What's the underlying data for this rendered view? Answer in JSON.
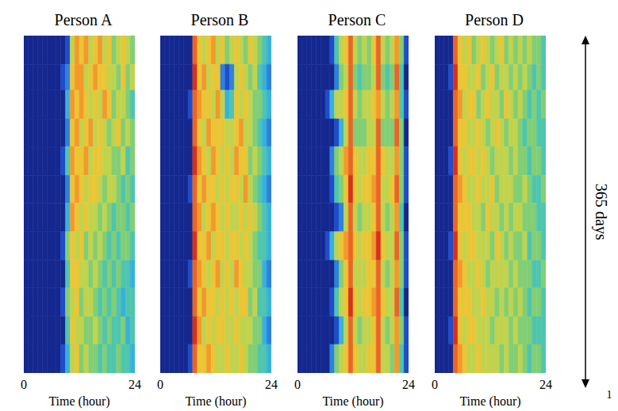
{
  "chart_data": [
    {
      "type": "heatmap",
      "title": "Person A",
      "x_label": "Time (hour)",
      "xlim": [
        0,
        24
      ],
      "xticks": [
        0,
        24
      ],
      "ylim": [
        0,
        365
      ],
      "tick_labels": "x",
      "x_bins": [
        0,
        1,
        2,
        3,
        4,
        5,
        6,
        7,
        8,
        9,
        10,
        11,
        12,
        13,
        14,
        15,
        16,
        17,
        18,
        19,
        20,
        21,
        22,
        23,
        24
      ],
      "y_bins": [
        0,
        31,
        59,
        90,
        120,
        151,
        181,
        212,
        243,
        273,
        304,
        334,
        365
      ],
      "color_range": [
        0,
        10
      ],
      "values": [
        [
          0,
          0,
          0,
          0,
          0,
          0,
          0,
          0,
          0,
          1,
          6,
          8,
          7,
          8,
          6,
          7,
          8,
          6,
          7,
          5,
          6,
          7,
          6,
          5
        ],
        [
          0,
          0,
          0,
          0,
          0,
          0,
          0,
          0,
          1,
          2,
          7,
          8,
          8,
          6,
          7,
          8,
          7,
          7,
          6,
          6,
          5,
          7,
          5,
          6
        ],
        [
          0,
          0,
          0,
          0,
          0,
          0,
          0,
          0,
          0,
          3,
          8,
          7,
          8,
          7,
          6,
          7,
          6,
          8,
          7,
          5,
          6,
          6,
          5,
          4
        ],
        [
          0,
          0,
          0,
          0,
          0,
          0,
          0,
          0,
          0,
          2,
          7,
          8,
          6,
          7,
          8,
          6,
          7,
          6,
          5,
          6,
          7,
          5,
          6,
          5
        ],
        [
          0,
          0,
          0,
          0,
          0,
          0,
          0,
          0,
          1,
          4,
          8,
          7,
          7,
          8,
          6,
          7,
          7,
          6,
          6,
          5,
          5,
          6,
          4,
          5
        ],
        [
          0,
          0,
          0,
          0,
          0,
          0,
          0,
          0,
          0,
          2,
          7,
          8,
          7,
          6,
          7,
          7,
          6,
          5,
          6,
          6,
          5,
          4,
          5,
          4
        ],
        [
          0,
          0,
          0,
          0,
          0,
          0,
          0,
          0,
          0,
          3,
          8,
          7,
          6,
          7,
          6,
          6,
          5,
          6,
          5,
          4,
          5,
          5,
          4,
          5
        ],
        [
          0,
          0,
          0,
          0,
          0,
          0,
          0,
          0,
          1,
          5,
          7,
          6,
          7,
          5,
          6,
          5,
          6,
          5,
          4,
          5,
          4,
          5,
          5,
          4
        ],
        [
          0,
          0,
          0,
          0,
          0,
          0,
          0,
          0,
          0,
          4,
          7,
          7,
          6,
          6,
          5,
          6,
          5,
          4,
          5,
          4,
          5,
          4,
          4,
          3
        ],
        [
          0,
          0,
          0,
          0,
          0,
          0,
          0,
          0,
          1,
          5,
          6,
          7,
          5,
          6,
          6,
          5,
          4,
          5,
          4,
          5,
          4,
          3,
          4,
          4
        ],
        [
          0,
          0,
          0,
          0,
          0,
          0,
          0,
          0,
          0,
          4,
          7,
          6,
          6,
          5,
          5,
          6,
          5,
          4,
          5,
          4,
          4,
          5,
          3,
          4
        ],
        [
          0,
          0,
          0,
          0,
          0,
          0,
          0,
          0,
          1,
          3,
          6,
          7,
          5,
          6,
          5,
          5,
          4,
          5,
          4,
          4,
          5,
          4,
          4,
          3
        ]
      ]
    },
    {
      "type": "heatmap",
      "title": "Person B",
      "x_label": "Time (hour)",
      "xlim": [
        0,
        24
      ],
      "xticks": [
        0,
        24
      ],
      "ylim": [
        0,
        365
      ],
      "tick_labels": "x",
      "x_bins": [
        0,
        1,
        2,
        3,
        4,
        5,
        6,
        7,
        8,
        9,
        10,
        11,
        12,
        13,
        14,
        15,
        16,
        17,
        18,
        19,
        20,
        21,
        22,
        23,
        24
      ],
      "y_bins": [
        0,
        31,
        59,
        90,
        120,
        151,
        181,
        212,
        243,
        273,
        304,
        334,
        365
      ],
      "color_range": [
        0,
        10
      ],
      "values": [
        [
          0,
          0,
          0,
          0,
          0,
          0,
          0,
          9,
          7,
          6,
          7,
          8,
          6,
          7,
          5,
          6,
          7,
          6,
          5,
          7,
          6,
          5,
          4,
          3
        ],
        [
          0,
          0,
          0,
          0,
          0,
          0,
          0,
          10,
          7,
          8,
          6,
          7,
          7,
          2,
          1,
          2,
          6,
          7,
          6,
          5,
          6,
          4,
          3,
          2
        ],
        [
          0,
          0,
          0,
          0,
          0,
          0,
          1,
          9,
          8,
          7,
          7,
          6,
          8,
          6,
          3,
          4,
          7,
          6,
          7,
          6,
          5,
          5,
          4,
          3
        ],
        [
          0,
          0,
          0,
          0,
          0,
          0,
          0,
          9,
          7,
          6,
          8,
          7,
          7,
          7,
          6,
          6,
          7,
          8,
          6,
          6,
          5,
          4,
          3,
          2
        ],
        [
          0,
          0,
          0,
          0,
          0,
          0,
          0,
          10,
          8,
          7,
          6,
          8,
          7,
          6,
          7,
          6,
          8,
          7,
          7,
          5,
          6,
          5,
          4,
          3
        ],
        [
          0,
          0,
          0,
          0,
          0,
          0,
          1,
          9,
          7,
          8,
          7,
          7,
          6,
          7,
          6,
          7,
          7,
          6,
          8,
          6,
          5,
          4,
          3,
          2
        ],
        [
          0,
          0,
          0,
          0,
          0,
          0,
          0,
          9,
          8,
          6,
          7,
          8,
          7,
          6,
          7,
          6,
          6,
          7,
          6,
          7,
          6,
          5,
          4,
          3
        ],
        [
          0,
          0,
          0,
          0,
          0,
          0,
          0,
          10,
          7,
          7,
          8,
          6,
          7,
          7,
          6,
          7,
          7,
          6,
          7,
          6,
          5,
          4,
          4,
          3
        ],
        [
          0,
          0,
          0,
          0,
          0,
          0,
          1,
          9,
          8,
          7,
          6,
          7,
          8,
          6,
          7,
          6,
          8,
          7,
          6,
          6,
          5,
          5,
          3,
          2
        ],
        [
          0,
          0,
          0,
          0,
          0,
          0,
          0,
          9,
          7,
          8,
          7,
          7,
          6,
          7,
          6,
          7,
          6,
          7,
          7,
          5,
          6,
          4,
          4,
          3
        ],
        [
          0,
          0,
          0,
          0,
          0,
          0,
          0,
          10,
          8,
          6,
          7,
          6,
          7,
          7,
          6,
          6,
          7,
          6,
          6,
          6,
          5,
          5,
          3,
          2
        ],
        [
          0,
          0,
          0,
          0,
          0,
          0,
          1,
          9,
          7,
          7,
          8,
          7,
          6,
          6,
          7,
          6,
          6,
          7,
          6,
          5,
          5,
          4,
          4,
          3
        ]
      ]
    },
    {
      "type": "heatmap",
      "title": "Person C",
      "x_label": "Time (hour)",
      "xlim": [
        0,
        24
      ],
      "xticks": [
        0,
        24
      ],
      "ylim": [
        0,
        365
      ],
      "tick_labels": "x",
      "x_bins": [
        0,
        1,
        2,
        3,
        4,
        5,
        6,
        7,
        8,
        9,
        10,
        11,
        12,
        13,
        14,
        15,
        16,
        17,
        18,
        19,
        20,
        21,
        22,
        23,
        24
      ],
      "y_bins": [
        0,
        31,
        59,
        90,
        120,
        151,
        181,
        212,
        243,
        273,
        304,
        334,
        365
      ],
      "color_range": [
        0,
        10
      ],
      "values": [
        [
          0,
          0,
          0,
          0,
          0,
          0,
          0,
          1,
          4,
          6,
          7,
          9,
          6,
          5,
          6,
          5,
          7,
          9,
          6,
          5,
          6,
          8,
          5,
          1
        ],
        [
          0,
          0,
          0,
          0,
          0,
          0,
          0,
          0,
          2,
          5,
          6,
          9,
          5,
          4,
          5,
          5,
          6,
          9,
          5,
          4,
          5,
          9,
          4,
          0
        ],
        [
          0,
          0,
          0,
          0,
          0,
          0,
          1,
          3,
          6,
          6,
          7,
          9,
          6,
          5,
          6,
          6,
          7,
          8,
          6,
          5,
          6,
          8,
          4,
          1
        ],
        [
          0,
          0,
          0,
          0,
          0,
          0,
          0,
          0,
          1,
          3,
          6,
          9,
          5,
          5,
          5,
          6,
          6,
          9,
          5,
          5,
          5,
          9,
          5,
          0
        ],
        [
          0,
          0,
          0,
          0,
          0,
          0,
          0,
          2,
          5,
          6,
          8,
          9,
          7,
          6,
          6,
          7,
          7,
          9,
          7,
          6,
          6,
          8,
          5,
          1
        ],
        [
          0,
          0,
          0,
          0,
          0,
          0,
          0,
          1,
          4,
          5,
          7,
          10,
          7,
          6,
          7,
          7,
          8,
          9,
          6,
          6,
          7,
          9,
          5,
          1
        ],
        [
          0,
          0,
          0,
          0,
          0,
          0,
          0,
          0,
          1,
          2,
          6,
          9,
          6,
          5,
          6,
          6,
          7,
          9,
          6,
          5,
          6,
          8,
          4,
          0
        ],
        [
          0,
          0,
          0,
          0,
          0,
          0,
          1,
          3,
          6,
          7,
          8,
          9,
          7,
          6,
          7,
          7,
          8,
          10,
          7,
          6,
          6,
          9,
          5,
          1
        ],
        [
          0,
          0,
          0,
          0,
          0,
          0,
          0,
          0,
          2,
          5,
          7,
          9,
          6,
          6,
          6,
          7,
          7,
          9,
          6,
          5,
          6,
          8,
          5,
          1
        ],
        [
          0,
          0,
          0,
          0,
          0,
          0,
          0,
          1,
          4,
          6,
          7,
          10,
          7,
          6,
          7,
          7,
          8,
          9,
          7,
          6,
          6,
          9,
          4,
          0
        ],
        [
          0,
          0,
          0,
          0,
          0,
          0,
          0,
          0,
          1,
          3,
          6,
          9,
          6,
          5,
          6,
          6,
          7,
          9,
          6,
          5,
          6,
          8,
          5,
          1
        ],
        [
          0,
          0,
          0,
          0,
          0,
          0,
          0,
          2,
          5,
          6,
          7,
          9,
          7,
          6,
          6,
          7,
          7,
          9,
          6,
          6,
          5,
          8,
          4,
          1
        ]
      ]
    },
    {
      "type": "heatmap",
      "title": "Person D",
      "x_label": "Time (hour)",
      "xlim": [
        0,
        24
      ],
      "xticks": [
        0,
        24
      ],
      "ylim": [
        0,
        365
      ],
      "tick_labels": "x",
      "x_bins": [
        0,
        1,
        2,
        3,
        4,
        5,
        6,
        7,
        8,
        9,
        10,
        11,
        12,
        13,
        14,
        15,
        16,
        17,
        18,
        19,
        20,
        21,
        22,
        23,
        24
      ],
      "y_bins": [
        0,
        31,
        59,
        90,
        120,
        151,
        181,
        212,
        243,
        273,
        304,
        334,
        365
      ],
      "color_range": [
        0,
        10
      ],
      "values": [
        [
          0,
          0,
          0,
          0,
          9,
          7,
          6,
          7,
          5,
          6,
          7,
          6,
          5,
          6,
          7,
          5,
          6,
          5,
          6,
          5,
          6,
          5,
          5,
          4
        ],
        [
          0,
          0,
          0,
          1,
          10,
          7,
          7,
          6,
          6,
          7,
          5,
          6,
          7,
          5,
          6,
          6,
          5,
          6,
          5,
          6,
          5,
          4,
          5,
          4
        ],
        [
          0,
          0,
          0,
          0,
          9,
          8,
          6,
          7,
          7,
          5,
          6,
          7,
          6,
          6,
          5,
          7,
          6,
          5,
          6,
          5,
          4,
          5,
          4,
          5
        ],
        [
          0,
          0,
          0,
          0,
          9,
          7,
          7,
          6,
          6,
          7,
          6,
          5,
          6,
          7,
          6,
          5,
          6,
          6,
          5,
          4,
          5,
          5,
          4,
          4
        ],
        [
          0,
          0,
          0,
          1,
          10,
          7,
          6,
          7,
          7,
          6,
          7,
          6,
          5,
          6,
          6,
          6,
          5,
          6,
          5,
          5,
          4,
          5,
          5,
          4
        ],
        [
          0,
          0,
          0,
          0,
          9,
          8,
          7,
          6,
          6,
          7,
          6,
          6,
          7,
          5,
          6,
          6,
          6,
          5,
          5,
          6,
          5,
          4,
          4,
          5
        ],
        [
          0,
          0,
          0,
          0,
          9,
          7,
          7,
          7,
          6,
          6,
          5,
          7,
          6,
          6,
          5,
          6,
          5,
          6,
          6,
          5,
          5,
          5,
          4,
          4
        ],
        [
          0,
          0,
          0,
          1,
          10,
          7,
          6,
          7,
          7,
          6,
          6,
          6,
          5,
          7,
          6,
          5,
          6,
          5,
          5,
          6,
          4,
          5,
          5,
          4
        ],
        [
          0,
          0,
          0,
          0,
          9,
          8,
          7,
          6,
          6,
          7,
          6,
          5,
          6,
          6,
          6,
          6,
          5,
          6,
          5,
          5,
          5,
          4,
          4,
          5
        ],
        [
          0,
          0,
          0,
          0,
          9,
          7,
          7,
          7,
          6,
          6,
          7,
          6,
          6,
          5,
          6,
          5,
          6,
          5,
          6,
          5,
          4,
          5,
          5,
          4
        ],
        [
          0,
          0,
          0,
          1,
          10,
          7,
          6,
          7,
          7,
          6,
          6,
          6,
          5,
          6,
          6,
          6,
          5,
          6,
          5,
          5,
          5,
          4,
          4,
          4
        ],
        [
          0,
          0,
          0,
          0,
          9,
          8,
          7,
          6,
          6,
          7,
          6,
          6,
          6,
          6,
          5,
          6,
          5,
          5,
          6,
          5,
          4,
          5,
          5,
          4
        ]
      ]
    }
  ],
  "annotations": [
    {
      "text": "365 days"
    },
    {
      "text": "1"
    }
  ]
}
